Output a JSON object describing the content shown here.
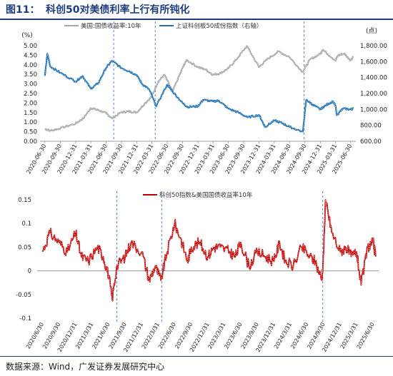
{
  "header": {
    "figure_label": "图11：",
    "title": "科创50对美债利率上行有所钝化"
  },
  "source": "数据来源：Wind，广发证券发展研究中心",
  "colors": {
    "grey_series": "#a6a6a6",
    "blue_series": "#1a6fb5",
    "red_series": "#c00000",
    "title": "#1f3d7a",
    "dashed_line": "#4a86e8"
  },
  "chart_data": [
    {
      "type": "line",
      "legend": [
        "美国:国债收益率:10年",
        "上证科创板50成份指数（右轴）"
      ],
      "y_unit_left": "(%)",
      "y_unit_right": "(点)",
      "ylim_left": [
        0,
        5
      ],
      "yticks_left": [
        "0.00",
        "0.50",
        "1.00",
        "1.50",
        "2.00",
        "2.50",
        "3.00",
        "3.50",
        "4.00",
        "4.50",
        "5.00"
      ],
      "ylim_right": [
        600,
        1800
      ],
      "yticks_right": [
        "600.00",
        "800.00",
        "1,000.00",
        "1,200.00",
        "1,400.00",
        "1,600.00",
        "1,800.00"
      ],
      "x_tick_labels": [
        "2020-06-30",
        "2020-09-30",
        "2020-12-31",
        "2021-03-31",
        "2021-06-30",
        "2021-09-30",
        "2021-12-31",
        "2022-03-31",
        "2022-06-30",
        "2022-09-30",
        "2022-12-31",
        "2023-03-31",
        "2023-06-30",
        "2023-09-30",
        "2023-12-31",
        "2024-03-31",
        "2024-06-30",
        "2024-09-30",
        "2024-12-31",
        "2025-03-31",
        "2025-06-30"
      ],
      "vlines": [
        "2021-08-15",
        "2022-04-20",
        "2024-09-25"
      ],
      "series": [
        {
          "name": "美国:国债收益率:10年",
          "axis": "left",
          "x": [
            "2020-06-30",
            "2020-08-01",
            "2020-09-30",
            "2020-12-31",
            "2021-02-15",
            "2021-03-31",
            "2021-05-15",
            "2021-06-30",
            "2021-08-05",
            "2021-09-30",
            "2021-11-15",
            "2021-12-31",
            "2022-02-15",
            "2022-03-31",
            "2022-05-06",
            "2022-06-14",
            "2022-08-01",
            "2022-09-30",
            "2022-10-24",
            "2022-12-31",
            "2023-02-15",
            "2023-03-31",
            "2023-05-15",
            "2023-06-30",
            "2023-08-15",
            "2023-10-19",
            "2023-12-31",
            "2024-02-15",
            "2024-04-25",
            "2024-06-30",
            "2024-09-16",
            "2024-10-31",
            "2024-12-31",
            "2025-01-14",
            "2025-03-31",
            "2025-04-15",
            "2025-05-21",
            "2025-06-30",
            "2025-07-15"
          ],
          "values": [
            0.66,
            0.55,
            0.68,
            0.93,
            1.2,
            1.74,
            1.63,
            1.47,
            1.2,
            1.52,
            1.56,
            1.51,
            1.96,
            2.35,
            3.1,
            3.48,
            2.6,
            3.83,
            4.25,
            3.88,
            3.75,
            3.48,
            3.56,
            3.81,
            4.25,
            4.98,
            3.88,
            4.27,
            4.7,
            4.4,
            3.62,
            4.28,
            4.57,
            4.79,
            4.23,
            4.48,
            4.59,
            4.24,
            4.42
          ]
        },
        {
          "name": "上证科创板50成份指数（右轴）",
          "axis": "right",
          "x": [
            "2020-06-30",
            "2020-07-15",
            "2020-08-01",
            "2020-09-30",
            "2020-12-31",
            "2021-02-10",
            "2021-03-31",
            "2021-05-15",
            "2021-06-30",
            "2021-08-05",
            "2021-09-30",
            "2021-11-15",
            "2021-12-31",
            "2022-01-31",
            "2022-03-15",
            "2022-04-26",
            "2022-06-30",
            "2022-07-31",
            "2022-09-30",
            "2022-10-31",
            "2022-12-31",
            "2023-01-31",
            "2023-03-31",
            "2023-05-05",
            "2023-06-30",
            "2023-08-31",
            "2023-10-23",
            "2023-12-31",
            "2024-01-31",
            "2024-02-05",
            "2024-03-31",
            "2024-05-15",
            "2024-06-30",
            "2024-09-18",
            "2024-09-30",
            "2024-10-08",
            "2024-11-15",
            "2024-12-31",
            "2025-01-31",
            "2025-03-15",
            "2025-03-31",
            "2025-04-08",
            "2025-05-15",
            "2025-06-30",
            "2025-07-15"
          ],
          "values": [
            1420,
            1700,
            1540,
            1460,
            1350,
            1420,
            1260,
            1330,
            1520,
            1610,
            1520,
            1480,
            1430,
            1320,
            1250,
            1040,
            1310,
            1230,
            1080,
            1030,
            1040,
            1120,
            1100,
            1110,
            1010,
            960,
            900,
            930,
            800,
            780,
            860,
            830,
            780,
            720,
            980,
            1120,
            1060,
            1000,
            1050,
            1100,
            1050,
            930,
            1010,
            1000,
            1010
          ]
        }
      ]
    },
    {
      "type": "line",
      "legend": [
        "科创50指数&美国国债收益率10年"
      ],
      "ylim": [
        -0.1,
        0.15
      ],
      "yticks": [
        "-0.1",
        "-0.05",
        "0",
        "0.05",
        "0.1",
        "0.15"
      ],
      "x_tick_labels": [
        "2020/6/30",
        "2020/9/30",
        "2020/12/31",
        "2021/3/31",
        "2021/6/30",
        "2021/9/30",
        "2021/12/31",
        "2022/3/31",
        "2022/6/30",
        "2022/9/30",
        "2022/12/31",
        "2023/3/31",
        "2023/6/30",
        "2023/9/30",
        "2023/12/31",
        "2024/3/31",
        "2024/6/30",
        "2024/9/30",
        "2024/12/31",
        "2025/3/31",
        "2025/6/30"
      ],
      "vlines": [
        "2021-08-15",
        "2022-04-20",
        "2024-09-25"
      ],
      "series": [
        {
          "name": "科创50指数&美国国债收益率10年",
          "x": [
            "2020-06-30",
            "2020-08-10",
            "2020-09-30",
            "2020-11-15",
            "2020-12-31",
            "2021-01-31",
            "2021-03-10",
            "2021-04-30",
            "2021-06-01",
            "2021-07-01",
            "2021-07-20",
            "2021-08-15",
            "2021-09-30",
            "2021-11-01",
            "2021-12-31",
            "2022-02-10",
            "2022-03-15",
            "2022-04-15",
            "2022-05-20",
            "2022-06-30",
            "2022-08-01",
            "2022-09-10",
            "2022-09-30",
            "2022-11-15",
            "2022-12-31",
            "2023-02-01",
            "2023-03-10",
            "2023-04-30",
            "2023-06-01",
            "2023-06-30",
            "2023-08-15",
            "2023-09-30",
            "2023-11-15",
            "2023-12-31",
            "2024-01-31",
            "2024-03-01",
            "2024-04-15",
            "2024-06-01",
            "2024-07-15",
            "2024-08-15",
            "2024-09-20",
            "2024-09-30",
            "2024-10-10",
            "2024-10-25",
            "2024-11-15",
            "2024-12-31",
            "2025-01-31",
            "2025-03-01",
            "2025-03-31",
            "2025-04-25",
            "2025-05-31",
            "2025-06-30",
            "2025-07-15"
          ],
          "values": [
            0.04,
            0.08,
            0.06,
            0.04,
            0.08,
            0.03,
            0.02,
            0.05,
            0.03,
            -0.01,
            -0.06,
            0.01,
            0.03,
            0.06,
            0.04,
            -0.02,
            0.01,
            -0.02,
            0.04,
            0.1,
            0.07,
            0.02,
            0.05,
            0.06,
            0.03,
            0.05,
            0.05,
            0.04,
            0.03,
            0.06,
            0.01,
            0.04,
            0.03,
            0.02,
            0.06,
            0.02,
            0.01,
            0.05,
            0.03,
            0.02,
            -0.02,
            0.04,
            0.15,
            0.12,
            0.08,
            0.04,
            0.05,
            0.03,
            0.04,
            -0.03,
            0.05,
            0.06,
            0.03
          ]
        }
      ]
    }
  ]
}
